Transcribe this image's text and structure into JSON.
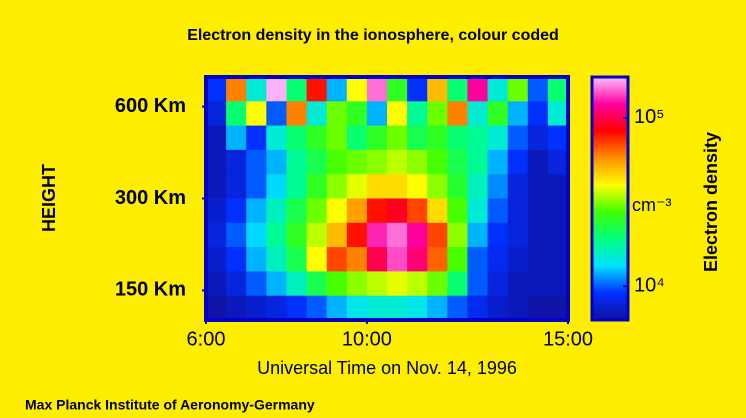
{
  "chart_data": {
    "type": "heatmap",
    "title": "Electron density in the ionosphere, colour coded",
    "x_label": "Universal Time on Nov. 14, 1996",
    "y_label": "HEIGHT",
    "footer": "Max Planck Institute of Aeronomy-Germany",
    "colorbar_label": "Electron density",
    "colorbar_unit": "cm⁻³",
    "xlim": [
      6,
      15
    ],
    "xticks": [
      {
        "value": 6,
        "label": "6:00"
      },
      {
        "value": 10,
        "label": "10:00"
      },
      {
        "value": 15,
        "label": "15:00"
      }
    ],
    "ylim": [
      120,
      750
    ],
    "y_log": true,
    "yticks": [
      {
        "value": 600,
        "label": "600 Km"
      },
      {
        "value": 300,
        "label": "300 Km"
      },
      {
        "value": 150,
        "label": "150 Km"
      }
    ],
    "zlim": [
      6300,
      175000
    ],
    "z_log": true,
    "zticks": [
      {
        "value": 100000,
        "label": "10⁵"
      },
      {
        "value": 10000,
        "label": "10⁴"
      }
    ],
    "colormap": [
      "#1010a0",
      "#0030ff",
      "#00e0ff",
      "#00ff80",
      "#40ff00",
      "#ffff00",
      "#ff9000",
      "#ff0000",
      "#ff00a0",
      "#ffc0ff"
    ],
    "values": [
      [
        9000,
        60000,
        15000,
        170000,
        20000,
        80000,
        12000,
        40000,
        150000,
        25000,
        9000,
        50000,
        20000,
        120000,
        15000,
        30000,
        10000,
        20000
      ],
      [
        8000,
        20000,
        40000,
        10000,
        60000,
        15000,
        30000,
        25000,
        12000,
        40000,
        18000,
        30000,
        60000,
        15000,
        25000,
        12000,
        9000,
        15000
      ],
      [
        7000,
        12000,
        9000,
        15000,
        20000,
        25000,
        30000,
        20000,
        25000,
        30000,
        22000,
        25000,
        20000,
        18000,
        15000,
        10000,
        8000,
        9000
      ],
      [
        7000,
        8000,
        10000,
        12000,
        18000,
        22000,
        28000,
        30000,
        32000,
        35000,
        32000,
        28000,
        22000,
        18000,
        12000,
        9000,
        7000,
        8000
      ],
      [
        7000,
        8000,
        10000,
        13000,
        18000,
        25000,
        32000,
        38000,
        45000,
        45000,
        40000,
        32000,
        24000,
        16000,
        11000,
        8000,
        7000,
        7000
      ],
      [
        7500,
        9000,
        12000,
        16000,
        22000,
        30000,
        40000,
        55000,
        80000,
        90000,
        70000,
        45000,
        28000,
        15000,
        10000,
        8000,
        7000,
        7000
      ],
      [
        8000,
        10000,
        13000,
        18000,
        25000,
        35000,
        50000,
        80000,
        130000,
        150000,
        120000,
        70000,
        32000,
        12000,
        9000,
        8000,
        7000,
        7000
      ],
      [
        7500,
        9000,
        12000,
        16000,
        22000,
        40000,
        70000,
        60000,
        100000,
        140000,
        110000,
        65000,
        28000,
        10000,
        8500,
        7500,
        7000,
        7000
      ],
      [
        7000,
        8000,
        10000,
        12000,
        16000,
        22000,
        28000,
        32000,
        35000,
        38000,
        35000,
        30000,
        20000,
        10000,
        8000,
        7000,
        7000,
        7000
      ],
      [
        6500,
        7000,
        7500,
        8000,
        9000,
        10000,
        12000,
        14000,
        15000,
        15000,
        14000,
        12000,
        10000,
        8500,
        7500,
        7000,
        6500,
        6500
      ]
    ]
  }
}
